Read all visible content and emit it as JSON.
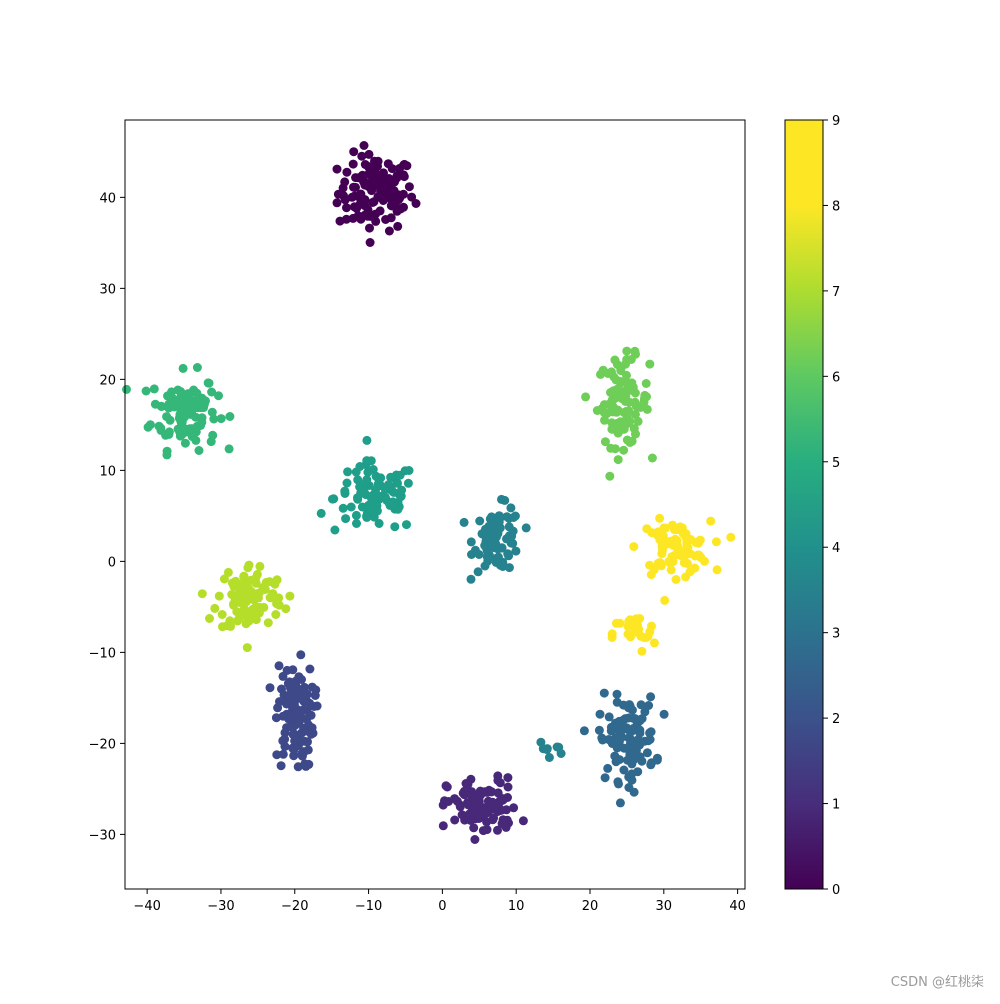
{
  "chart_data": {
    "type": "scatter",
    "title": "",
    "xlabel": "",
    "ylabel": "",
    "xlim": [
      -43,
      41
    ],
    "ylim": [
      -36,
      48.5
    ],
    "x_ticks": [
      -40,
      -30,
      -20,
      -10,
      0,
      10,
      20,
      30,
      40
    ],
    "y_ticks": [
      -30,
      -20,
      -10,
      0,
      10,
      20,
      30,
      40
    ],
    "grid": false,
    "colormap": "viridis",
    "colorbar": {
      "min": 0,
      "max": 9,
      "ticks": [
        0,
        1,
        2,
        3,
        4,
        5,
        6,
        7,
        8,
        9
      ]
    },
    "palette": [
      "#440154",
      "#472d7b",
      "#3b528b",
      "#2c728e",
      "#21918c",
      "#28ae80",
      "#5ec962",
      "#addc30",
      "#fde725",
      "#fde725"
    ],
    "label_colors": {
      "0": "#440154",
      "1": "#482878",
      "2": "#3e4989",
      "3": "#31688e",
      "4": "#26828e",
      "5": "#1f9e89",
      "6": "#35b779",
      "7": "#6ece58",
      "8": "#b5de2b",
      "9": "#fde725"
    },
    "clusters": [
      {
        "label": 0,
        "center": [
          -9,
          40.5
        ],
        "spread": [
          3.2,
          2.6
        ],
        "n": 120
      },
      {
        "label": 6,
        "center": [
          -35,
          16.5
        ],
        "spread": [
          2.8,
          2.6
        ],
        "n": 110
      },
      {
        "label": 7,
        "center": [
          24.5,
          17.5
        ],
        "spread": [
          2.2,
          3.0
        ],
        "n": 95
      },
      {
        "label": 5,
        "center": [
          -9,
          7
        ],
        "spread": [
          3.5,
          2.4
        ],
        "n": 95
      },
      {
        "label": 4,
        "center": [
          7.5,
          2.5
        ],
        "spread": [
          2.0,
          2.2
        ],
        "n": 80
      },
      {
        "label": 9,
        "center": [
          31.5,
          1.5
        ],
        "spread": [
          3.0,
          1.8
        ],
        "n": 80
      },
      {
        "label": 9,
        "center": [
          26,
          -8
        ],
        "spread": [
          1.8,
          1.3
        ],
        "n": 25
      },
      {
        "label": 8,
        "center": [
          -26,
          -4
        ],
        "spread": [
          2.8,
          2.4
        ],
        "n": 105
      },
      {
        "label": 2,
        "center": [
          -20,
          -17
        ],
        "spread": [
          1.6,
          3.6
        ],
        "n": 110
      },
      {
        "label": 1,
        "center": [
          5.5,
          -27
        ],
        "spread": [
          3.0,
          2.0
        ],
        "n": 100
      },
      {
        "label": 3,
        "center": [
          25,
          -19.5
        ],
        "spread": [
          2.4,
          2.8
        ],
        "n": 105
      },
      {
        "label": 4,
        "center": [
          15,
          -20.5
        ],
        "spread": [
          1.2,
          0.5
        ],
        "n": 8
      }
    ]
  },
  "watermark": "CSDN @红桃柒"
}
